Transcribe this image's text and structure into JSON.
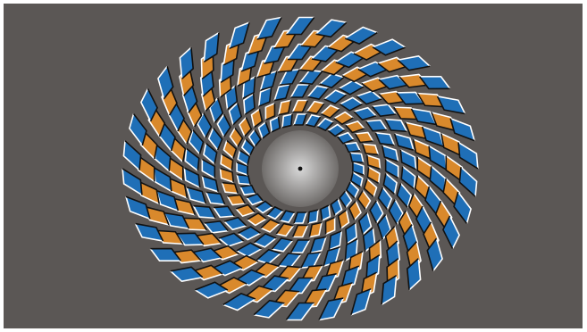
{
  "illusion": {
    "kind": "rotating-snakes-style circular optical illusion",
    "colors": {
      "background": "#5b5755",
      "blue": "#1f6fb7",
      "orange": "#d9892c",
      "edge_light": "#ffffff",
      "edge_dark": "#111111",
      "center_light": "#d9d9d9",
      "center_dark": "#6f6c6a",
      "center_dot": "#111111"
    },
    "rings": [
      {
        "color": "blue",
        "count": 28
      },
      {
        "color": "orange",
        "count": 30
      },
      {
        "color": "blue",
        "count": 32
      },
      {
        "color": "blue",
        "count": 32
      },
      {
        "color": "orange",
        "count": 34
      },
      {
        "color": "blue",
        "count": 34
      },
      {
        "color": "orange",
        "count": 34
      },
      {
        "color": "blue",
        "count": 34
      }
    ]
  }
}
